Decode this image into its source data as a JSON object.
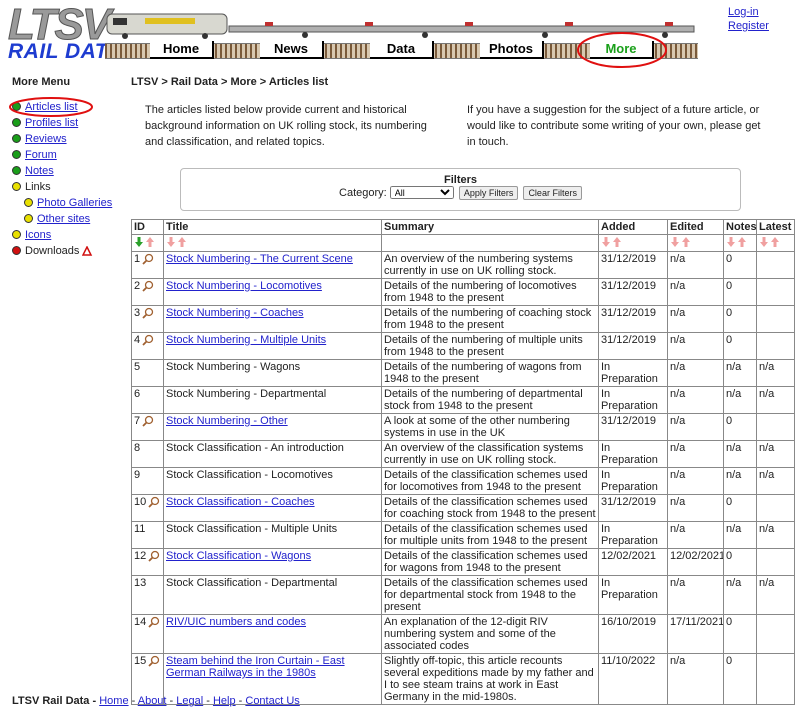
{
  "header": {
    "logo": "LTSV",
    "brand": "RAIL DATA",
    "nav": [
      {
        "label": "Home",
        "active": false
      },
      {
        "label": "News",
        "active": false
      },
      {
        "label": "Data",
        "active": false
      },
      {
        "label": "Photos",
        "active": false
      },
      {
        "label": "More",
        "active": true
      }
    ],
    "account": [
      "Log-in",
      "Register"
    ]
  },
  "sidebar": {
    "title": "More Menu",
    "items": [
      {
        "label": "Articles list",
        "color": "#1a9e1a",
        "link": true,
        "indent": false,
        "current": true
      },
      {
        "label": "Profiles list",
        "color": "#1a9e1a",
        "link": true,
        "indent": false,
        "current": false
      },
      {
        "label": "Reviews",
        "color": "#1a9e1a",
        "link": true,
        "indent": false,
        "current": false
      },
      {
        "label": "Forum",
        "color": "#1a9e1a",
        "link": true,
        "indent": false,
        "current": false
      },
      {
        "label": "Notes",
        "color": "#1a9e1a",
        "link": true,
        "indent": false,
        "current": false
      },
      {
        "label": "Links",
        "color": "#e8e000",
        "link": false,
        "indent": false,
        "current": false
      },
      {
        "label": "Photo Galleries",
        "color": "#e8e000",
        "link": true,
        "indent": true,
        "current": false
      },
      {
        "label": "Other sites",
        "color": "#e8e000",
        "link": true,
        "indent": true,
        "current": false
      },
      {
        "label": "Icons",
        "color": "#e8e000",
        "link": true,
        "indent": false,
        "current": false
      },
      {
        "label": "Downloads",
        "color": "#d01010",
        "link": false,
        "indent": false,
        "current": false
      }
    ]
  },
  "breadcrumb": "LTSV > Rail Data > More > Articles list",
  "intro": [
    "The articles listed below provide current and historical background information on UK rolling stock, its numbering and classification, and related topics.",
    "If you have a suggestion for the subject of a future article, or would like to contribute some writing of your own, please get in touch."
  ],
  "filters": {
    "title": "Filters",
    "label": "Category:",
    "selected": "All",
    "buttons": [
      "Apply Filters",
      "Clear Filters"
    ]
  },
  "table": {
    "columns": [
      "ID",
      "Title",
      "Summary",
      "Added",
      "Edited",
      "Notes",
      "Latest"
    ],
    "rows": [
      {
        "id": 1,
        "title": "Stock Numbering - The Current Scene",
        "link": true,
        "summary": "An overview of the numbering systems currently in use on UK rolling stock.",
        "added": "31/12/2019",
        "edited": "n/a",
        "notes": "0",
        "latest": null
      },
      {
        "id": 2,
        "title": "Stock Numbering - Locomotives",
        "link": true,
        "summary": "Details of the numbering of locomotives from 1948 to the present",
        "added": "31/12/2019",
        "edited": "n/a",
        "notes": "0",
        "latest": null
      },
      {
        "id": 3,
        "title": "Stock Numbering - Coaches",
        "link": true,
        "summary": "Details of the numbering of coaching stock from 1948 to the present",
        "added": "31/12/2019",
        "edited": "n/a",
        "notes": "0",
        "latest": null
      },
      {
        "id": 4,
        "title": "Stock Numbering - Multiple Units",
        "link": true,
        "summary": "Details of the numbering of multiple units from 1948 to the present",
        "added": "31/12/2019",
        "edited": "n/a",
        "notes": "0",
        "latest": null
      },
      {
        "id": 5,
        "title": "Stock Numbering - Wagons",
        "link": false,
        "summary": "Details of the numbering of wagons from 1948 to the present",
        "added": "In Preparation",
        "edited": "n/a",
        "notes": "n/a",
        "latest": "n/a"
      },
      {
        "id": 6,
        "title": "Stock Numbering - Departmental",
        "link": false,
        "summary": "Details of the numbering of departmental stock from 1948 to the present",
        "added": "In Preparation",
        "edited": "n/a",
        "notes": "n/a",
        "latest": "n/a"
      },
      {
        "id": 7,
        "title": "Stock Numbering - Other",
        "link": true,
        "summary": "A look at some of the other numbering systems in use in the UK",
        "added": "31/12/2019",
        "edited": "n/a",
        "notes": "0",
        "latest": null
      },
      {
        "id": 8,
        "title": "Stock Classification - An introduction",
        "link": false,
        "summary": "An overview of the classification systems currently in use on UK rolling stock.",
        "added": "In Preparation",
        "edited": "n/a",
        "notes": "n/a",
        "latest": "n/a"
      },
      {
        "id": 9,
        "title": "Stock Classification - Locomotives",
        "link": false,
        "summary": "Details of the classification schemes used for locomotives from 1948 to the present",
        "added": "In Preparation",
        "edited": "n/a",
        "notes": "n/a",
        "latest": "n/a"
      },
      {
        "id": 10,
        "title": "Stock Classification - Coaches",
        "link": true,
        "summary": "Details of the classification schemes used for coaching stock from 1948 to the present",
        "added": "31/12/2019",
        "edited": "n/a",
        "notes": "0",
        "latest": null
      },
      {
        "id": 11,
        "title": "Stock Classification - Multiple Units",
        "link": false,
        "summary": "Details of the classification schemes used for multiple units from 1948 to the present",
        "added": "In Preparation",
        "edited": "n/a",
        "notes": "n/a",
        "latest": "n/a"
      },
      {
        "id": 12,
        "title": "Stock Classification - Wagons",
        "link": true,
        "summary": "Details of the classification schemes used for wagons from 1948 to the present",
        "added": "12/02/2021",
        "edited": "12/02/2021",
        "notes": "0",
        "latest": null
      },
      {
        "id": 13,
        "title": "Stock Classification - Departmental",
        "link": false,
        "summary": "Details of the classification schemes used for departmental stock from 1948 to the present",
        "added": "In Preparation",
        "edited": "n/a",
        "notes": "n/a",
        "latest": "n/a"
      },
      {
        "id": 14,
        "title": "RIV/UIC numbers and codes",
        "link": true,
        "summary": "An explanation of the 12-digit RIV numbering system and some of the associated codes",
        "added": "16/10/2019",
        "edited": "17/11/2021",
        "notes": "0",
        "latest": null
      },
      {
        "id": 15,
        "title": "Steam behind the Iron Curtain - East German Railways in the 1980s",
        "link": true,
        "summary": "Slightly off-topic, this article recounts several expeditions made by my father and I to see steam trains at work in East Germany in the mid-1980s.",
        "added": "11/10/2022",
        "edited": "n/a",
        "notes": "0",
        "latest": null
      }
    ]
  },
  "footer": {
    "title": "LTSV Rail Data -",
    "links": [
      "Home",
      "About",
      "Legal",
      "Help",
      "Contact Us"
    ]
  }
}
